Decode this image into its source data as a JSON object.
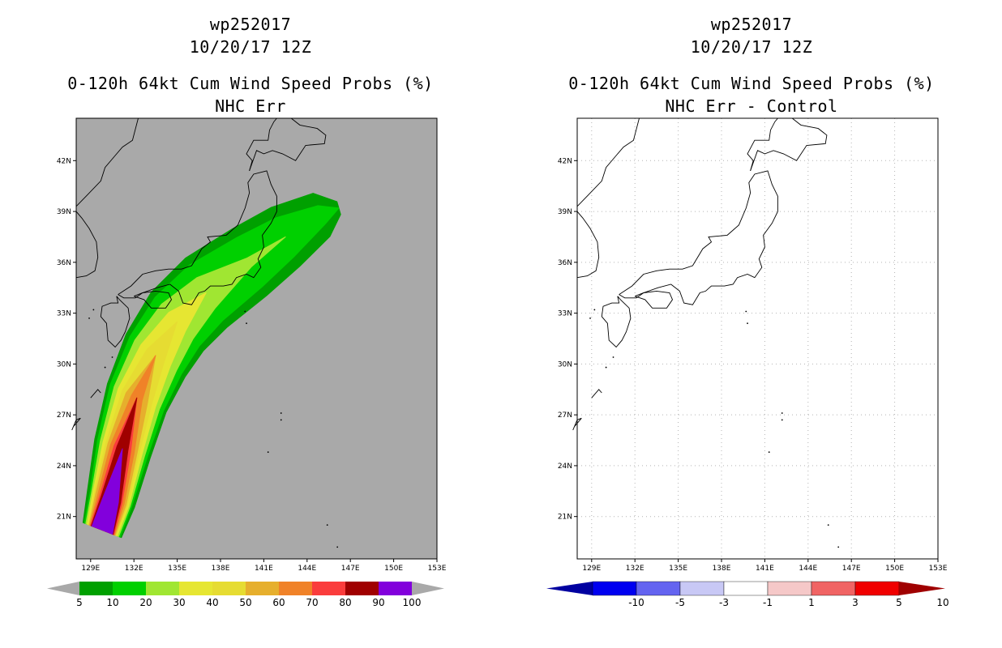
{
  "panels": [
    {
      "title_lines": [
        "wp252017",
        "10/20/17 12Z",
        "0-120h 64kt Cum Wind Speed Probs (%)",
        "NHC Err"
      ],
      "background_color": "#a9a9a9",
      "gridlines": false
    },
    {
      "title_lines": [
        "wp252017",
        "10/20/17 12Z",
        "0-120h 64kt Cum Wind Speed Probs (%)",
        "NHC Err - Control"
      ],
      "background_color": "#ffffff",
      "gridlines": true
    }
  ],
  "chart_data": [
    {
      "type": "heatmap",
      "title": "0-120h 64kt Cum Wind Speed Probs (%) NHC Err",
      "storm": "wp252017",
      "datetime": "10/20/17 12Z",
      "x_ticks": [
        "129E",
        "132E",
        "135E",
        "138E",
        "141E",
        "144E",
        "147E",
        "150E",
        "153E"
      ],
      "y_ticks": [
        "21N",
        "24N",
        "27N",
        "30N",
        "33N",
        "36N",
        "39N",
        "42N"
      ],
      "xlim": [
        128,
        153
      ],
      "ylim": [
        18.5,
        44.5
      ],
      "colorbar": {
        "levels": [
          "5",
          "10",
          "20",
          "30",
          "40",
          "50",
          "60",
          "70",
          "80",
          "90",
          "100"
        ],
        "colors": [
          "#00a000",
          "#00d000",
          "#a0e632",
          "#e6e632",
          "#e6dc32",
          "#e6af2d",
          "#f08228",
          "#fa3c3c",
          "#a00000",
          "#8200dc"
        ]
      },
      "track_axis": [
        [
          129.8,
          20.2
        ],
        [
          130.4,
          22
        ],
        [
          131.2,
          25
        ],
        [
          132.2,
          28
        ],
        [
          133.5,
          30.5
        ],
        [
          135,
          32.5
        ],
        [
          137,
          34.2
        ],
        [
          140,
          36
        ],
        [
          142.5,
          37.5
        ],
        [
          145,
          38.8
        ],
        [
          146.2,
          39.2
        ]
      ],
      "contours": [
        {
          "level": 5,
          "half_widths": [
            1.4,
            1.7,
            2.0,
            2.2,
            2.4,
            2.5,
            2.5,
            2.3,
            2.0,
            1.4,
            0.4
          ]
        },
        {
          "level": 10,
          "half_widths": [
            1.3,
            1.5,
            1.8,
            2.0,
            2.1,
            2.1,
            2.0,
            1.7,
            1.3,
            0.6,
            0.0
          ]
        },
        {
          "level": 20,
          "half_widths": [
            1.2,
            1.4,
            1.6,
            1.7,
            1.7,
            1.5,
            1.1,
            0.3,
            0.0,
            0.0,
            0.0
          ]
        },
        {
          "level": 30,
          "half_widths": [
            1.1,
            1.3,
            1.4,
            1.4,
            1.2,
            0.8,
            0.0,
            0.0,
            0.0,
            0.0,
            0.0
          ]
        },
        {
          "level": 40,
          "half_widths": [
            1.0,
            1.2,
            1.2,
            1.1,
            0.7,
            0.0,
            0.0,
            0.0,
            0.0,
            0.0,
            0.0
          ]
        },
        {
          "level": 50,
          "half_widths": [
            0.95,
            1.1,
            1.05,
            0.8,
            0.0,
            0.0,
            0.0,
            0.0,
            0.0,
            0.0,
            0.0
          ]
        },
        {
          "level": 60,
          "half_widths": [
            0.9,
            0.95,
            0.85,
            0.4,
            0.0,
            0.0,
            0.0,
            0.0,
            0.0,
            0.0,
            0.0
          ]
        },
        {
          "level": 70,
          "half_widths": [
            0.85,
            0.8,
            0.6,
            0.0,
            0.0,
            0.0,
            0.0,
            0.0,
            0.0,
            0.0,
            0.0
          ]
        },
        {
          "level": 80,
          "half_widths": [
            0.8,
            0.7,
            0.4,
            0.0,
            0.0,
            0.0,
            0.0,
            0.0,
            0.0,
            0.0,
            0.0
          ]
        },
        {
          "level": 90,
          "half_widths": [
            0.75,
            0.55,
            0.0,
            0.0,
            0.0,
            0.0,
            0.0,
            0.0,
            0.0,
            0.0,
            0.0
          ]
        }
      ]
    },
    {
      "type": "heatmap",
      "title": "0-120h 64kt Cum Wind Speed Probs (%) NHC Err - Control",
      "storm": "wp252017",
      "datetime": "10/20/17 12Z",
      "x_ticks": [
        "129E",
        "132E",
        "135E",
        "138E",
        "141E",
        "144E",
        "147E",
        "150E",
        "153E"
      ],
      "y_ticks": [
        "21N",
        "24N",
        "27N",
        "30N",
        "33N",
        "36N",
        "39N",
        "42N"
      ],
      "xlim": [
        128,
        153
      ],
      "ylim": [
        18.5,
        44.5
      ],
      "colorbar": {
        "levels": [
          "-10",
          "-5",
          "-3",
          "-1",
          "1",
          "3",
          "5",
          "10"
        ],
        "colors": [
          "#0000a0",
          "#0000f0",
          "#6464f0",
          "#c8c8f5",
          "#ffffff",
          "#f5c8c8",
          "#f06464",
          "#f00000",
          "#a00000"
        ]
      },
      "contours": []
    }
  ]
}
